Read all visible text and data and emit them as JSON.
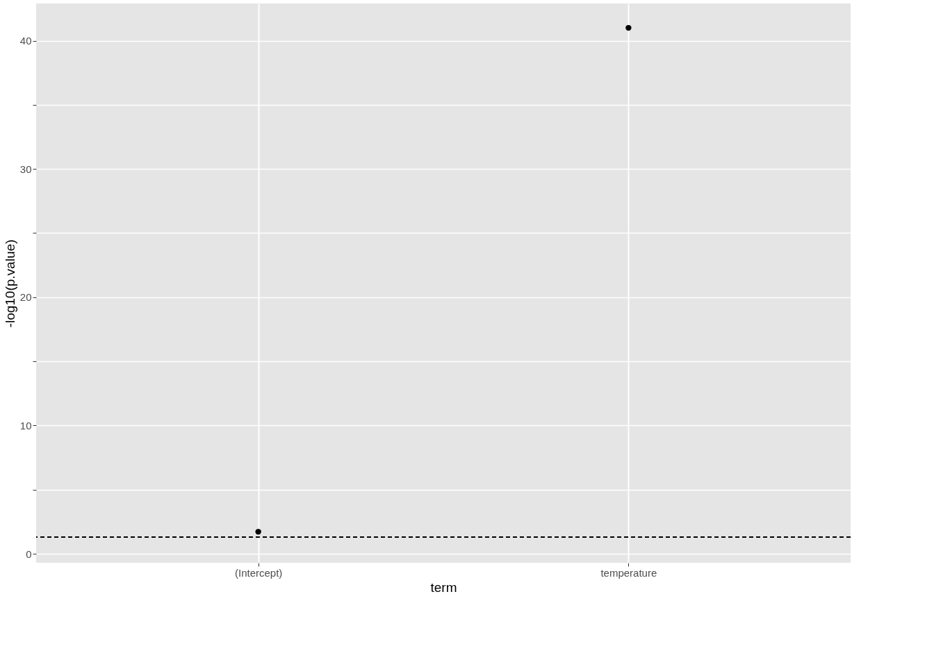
{
  "chart_data": {
    "type": "scatter",
    "xlabel": "term",
    "ylabel": "-log10(p.value)",
    "categories": [
      "(Intercept)",
      "temperature"
    ],
    "series": [
      {
        "color": "#000000",
        "values": [
          1.72,
          41.0
        ]
      }
    ],
    "ylim": [
      -0.7,
      42.9
    ],
    "yticks": [
      0,
      {
        "value": 5,
        "label": null
      },
      10,
      {
        "value": 15,
        "label": null
      },
      20,
      {
        "value": 25,
        "label": null
      },
      30,
      {
        "value": 35,
        "label": null
      },
      40
    ],
    "ref_lines": [
      {
        "axis": "y",
        "value": 1.3,
        "color": "#000000",
        "line_style": "dashed"
      }
    ],
    "grid": true,
    "marker": "circle"
  }
}
